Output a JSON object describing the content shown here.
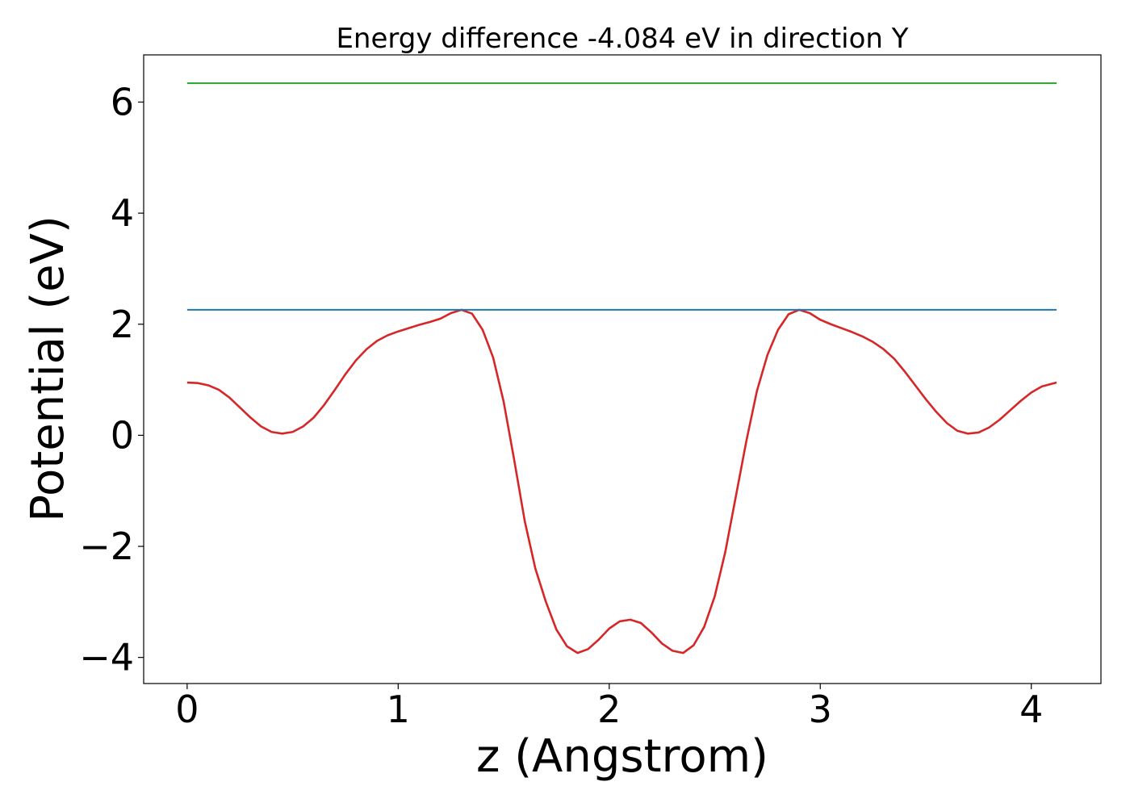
{
  "chart_data": {
    "type": "line",
    "title": "Energy difference -4.084 eV in direction Y",
    "xlabel": "z (Angstrom)",
    "ylabel": "Potential (eV)",
    "xlim": [
      -0.206,
      4.33
    ],
    "ylim": [
      -4.47,
      6.85
    ],
    "xticks": [
      0,
      1,
      2,
      3,
      4
    ],
    "xtick_labels": [
      "0",
      "1",
      "2",
      "3",
      "4"
    ],
    "yticks": [
      -4,
      -2,
      0,
      2,
      4,
      6
    ],
    "ytick_labels": [
      "−4",
      "−2",
      "0",
      "2",
      "4",
      "6"
    ],
    "grid": false,
    "series": [
      {
        "color": "#d62728",
        "x": [
          0,
          0.05,
          0.1,
          0.15,
          0.2,
          0.25,
          0.3,
          0.35,
          0.4,
          0.45,
          0.5,
          0.55,
          0.6,
          0.65,
          0.7,
          0.75,
          0.8,
          0.85,
          0.9,
          0.95,
          1.0,
          1.05,
          1.1,
          1.15,
          1.2,
          1.25,
          1.3,
          1.35,
          1.4,
          1.45,
          1.5,
          1.55,
          1.6,
          1.65,
          1.7,
          1.75,
          1.8,
          1.85,
          1.9,
          1.95,
          2.0,
          2.05,
          2.1,
          2.15,
          2.2,
          2.25,
          2.3,
          2.35,
          2.4,
          2.45,
          2.5,
          2.55,
          2.6,
          2.65,
          2.7,
          2.75,
          2.8,
          2.85,
          2.9,
          2.95,
          3.0,
          3.05,
          3.1,
          3.15,
          3.2,
          3.25,
          3.3,
          3.35,
          3.4,
          3.45,
          3.5,
          3.55,
          3.6,
          3.65,
          3.7,
          3.75,
          3.8,
          3.85,
          3.9,
          3.95,
          4.0,
          4.05,
          4.1,
          4.12
        ],
        "y": [
          0.95,
          0.94,
          0.9,
          0.82,
          0.68,
          0.5,
          0.32,
          0.16,
          0.06,
          0.03,
          0.06,
          0.16,
          0.32,
          0.55,
          0.82,
          1.1,
          1.35,
          1.55,
          1.7,
          1.8,
          1.87,
          1.93,
          1.99,
          2.04,
          2.1,
          2.2,
          2.26,
          2.19,
          1.9,
          1.4,
          0.6,
          -0.45,
          -1.55,
          -2.4,
          -3.0,
          -3.5,
          -3.8,
          -3.92,
          -3.85,
          -3.68,
          -3.48,
          -3.35,
          -3.32,
          -3.38,
          -3.55,
          -3.75,
          -3.88,
          -3.92,
          -3.78,
          -3.45,
          -2.9,
          -2.1,
          -1.1,
          -0.1,
          0.8,
          1.45,
          1.9,
          2.18,
          2.26,
          2.2,
          2.08,
          2.0,
          1.93,
          1.86,
          1.78,
          1.68,
          1.55,
          1.38,
          1.15,
          0.9,
          0.65,
          0.42,
          0.22,
          0.08,
          0.03,
          0.05,
          0.14,
          0.28,
          0.45,
          0.62,
          0.77,
          0.88,
          0.93,
          0.95
        ]
      },
      {
        "color": "#1f77b4",
        "x": [
          0,
          4.12
        ],
        "y": [
          2.26,
          2.26
        ]
      },
      {
        "color": "#2ca02c",
        "x": [
          0,
          4.12
        ],
        "y": [
          6.34,
          6.34
        ]
      }
    ]
  }
}
